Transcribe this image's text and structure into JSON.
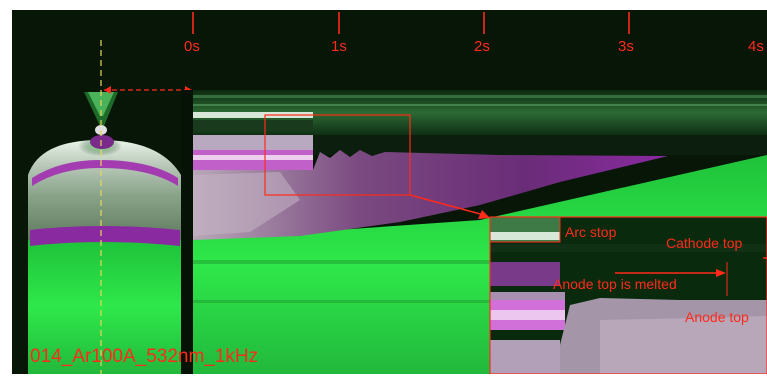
{
  "time_axis": {
    "ticks": [
      "0s",
      "1s",
      "2s",
      "3s",
      "4s"
    ]
  },
  "annotations": {
    "arc_stop": "Arc stop",
    "cathode_top": "Cathode top",
    "anode_melted": "Anode top is melted",
    "anode_top": "Anode top"
  },
  "caption": "014_Ar100A_532nm_1kHz",
  "colors": {
    "annotation": "#ff2a1a",
    "plasma_green": "#2ee84a",
    "magenta": "#b030c0",
    "background": "#0a1a0a"
  }
}
